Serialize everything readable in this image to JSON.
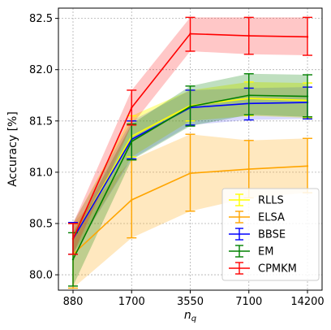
{
  "chart_data": {
    "type": "line",
    "xlabel_base": "n",
    "xlabel_sub": "q",
    "ylabel": "Accuracy [%]",
    "categories": [
      "880",
      "1700",
      "3550",
      "7100",
      "14200"
    ],
    "ylim": [
      79.85,
      82.6
    ],
    "yticks": [
      "80.0",
      "80.5",
      "81.0",
      "81.5",
      "82.0",
      "82.5"
    ],
    "grid": true,
    "legend_position": "bottom-right",
    "series": [
      {
        "name": "RLLS",
        "color": "#ffff00",
        "fill_alpha": 0.4,
        "values": [
          80.35,
          81.35,
          81.65,
          81.72,
          81.7
        ],
        "lower": [
          80.2,
          81.15,
          81.5,
          81.55,
          81.53
        ],
        "upper": [
          80.5,
          81.55,
          81.8,
          81.88,
          81.87
        ]
      },
      {
        "name": "ELSA",
        "color": "#ffa500",
        "fill_alpha": 0.25,
        "values": [
          80.2,
          80.73,
          80.99,
          81.03,
          81.06
        ],
        "lower": [
          79.87,
          80.36,
          80.62,
          80.75,
          80.8
        ],
        "upper": [
          80.5,
          81.12,
          81.37,
          81.31,
          81.33
        ]
      },
      {
        "name": "BBSE",
        "color": "#0000ff",
        "fill_alpha": 0.15,
        "values": [
          80.35,
          81.32,
          81.63,
          81.67,
          81.68
        ],
        "lower": [
          80.2,
          81.13,
          81.46,
          81.51,
          81.52
        ],
        "upper": [
          80.51,
          81.5,
          81.8,
          81.82,
          81.83
        ]
      },
      {
        "name": "EM",
        "color": "#008000",
        "fill_alpha": 0.25,
        "values": [
          80.15,
          81.3,
          81.64,
          81.75,
          81.74
        ],
        "lower": [
          79.89,
          81.12,
          81.45,
          81.56,
          81.54
        ],
        "upper": [
          80.41,
          81.47,
          81.84,
          81.96,
          81.95
        ]
      },
      {
        "name": "CPMKM",
        "color": "#ff0000",
        "fill_alpha": 0.22,
        "values": [
          80.35,
          81.63,
          82.35,
          82.33,
          82.32
        ],
        "lower": [
          80.2,
          81.46,
          82.18,
          82.15,
          82.14
        ],
        "upper": [
          80.5,
          81.8,
          82.51,
          82.51,
          82.51
        ]
      }
    ]
  }
}
